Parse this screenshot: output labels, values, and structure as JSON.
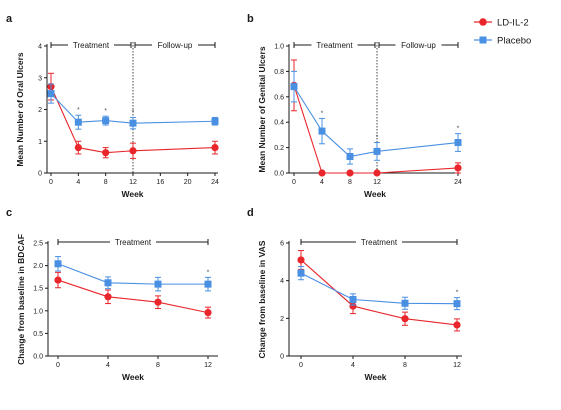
{
  "legend": {
    "items": [
      {
        "label": "LD-IL-2",
        "color": "#e8262b",
        "marker": "circle"
      },
      {
        "label": "Placebo",
        "color": "#4a90e2",
        "marker": "square"
      }
    ]
  },
  "chart_data": [
    {
      "panel": "a",
      "type": "line",
      "ylabel": "Mean Number of Oral Ulcers",
      "xlabel": "Week",
      "x": [
        0,
        4,
        8,
        12,
        24
      ],
      "x_ticks": [
        "0",
        "4",
        "8",
        "12",
        "16",
        "20",
        "24"
      ],
      "y_ticks": [
        "0",
        "1",
        "2",
        "3",
        "4"
      ],
      "ylim": [
        0,
        4
      ],
      "phases": [
        {
          "label": "Treatment",
          "from": 0,
          "to": 12
        },
        {
          "label": "Follow-up",
          "from": 12,
          "to": 24
        }
      ],
      "divider_at": 12,
      "significance": [
        4,
        8,
        12
      ],
      "series": [
        {
          "name": "LD-IL-2",
          "values": [
            2.72,
            0.8,
            0.64,
            0.7,
            0.8
          ],
          "errors": [
            0.42,
            0.2,
            0.16,
            0.24,
            0.2
          ]
        },
        {
          "name": "Placebo",
          "values": [
            2.5,
            1.6,
            1.65,
            1.57,
            1.63
          ],
          "errors": [
            0.3,
            0.22,
            0.14,
            0.18,
            0.12
          ]
        }
      ]
    },
    {
      "panel": "b",
      "type": "line",
      "ylabel": "Mean Number of Genital Ulcers",
      "xlabel": "Week",
      "x": [
        0,
        4,
        8,
        12,
        24
      ],
      "x_ticks": [
        "0",
        "4",
        "8",
        "12",
        "24"
      ],
      "y_ticks": [
        "0.0",
        "0.2",
        "0.4",
        "0.6",
        "0.8",
        "1.0"
      ],
      "ylim": [
        0,
        1
      ],
      "phases": [
        {
          "label": "Treatment",
          "from": 0,
          "to": 12
        },
        {
          "label": "Follow-up",
          "from": 12,
          "to": 24
        }
      ],
      "divider_at": 12,
      "significance": [
        4,
        12,
        24
      ],
      "series": [
        {
          "name": "LD-IL-2",
          "values": [
            0.69,
            0.0,
            0.0,
            0.0,
            0.04
          ],
          "errors": [
            0.2,
            0.0,
            0.0,
            0.0,
            0.04
          ]
        },
        {
          "name": "Placebo",
          "values": [
            0.68,
            0.33,
            0.13,
            0.17,
            0.24
          ],
          "errors": [
            0.12,
            0.1,
            0.06,
            0.07,
            0.07
          ]
        }
      ]
    },
    {
      "panel": "c",
      "type": "line",
      "ylabel": "Change from baseline in BDCAF",
      "xlabel": "Week",
      "x": [
        0,
        4,
        8,
        12
      ],
      "x_ticks": [
        "0",
        "4",
        "8",
        "12"
      ],
      "y_ticks": [
        "0.0",
        "0.5",
        "1.0",
        "1.5",
        "2.0",
        "2.5"
      ],
      "ylim": [
        0,
        2.5
      ],
      "phases": [
        {
          "label": "Treatment",
          "from": 0,
          "to": 12
        }
      ],
      "divider_at": null,
      "significance": [
        12
      ],
      "series": [
        {
          "name": "LD-IL-2",
          "values": [
            1.68,
            1.31,
            1.19,
            0.96
          ],
          "errors": [
            0.17,
            0.15,
            0.14,
            0.12
          ]
        },
        {
          "name": "Placebo",
          "values": [
            2.04,
            1.62,
            1.59,
            1.59
          ],
          "errors": [
            0.16,
            0.13,
            0.15,
            0.15
          ]
        }
      ]
    },
    {
      "panel": "d",
      "type": "line",
      "ylabel": "Change from baseline in VAS",
      "xlabel": "Week",
      "x": [
        0,
        4,
        8,
        12
      ],
      "x_ticks": [
        "0",
        "4",
        "8",
        "12"
      ],
      "y_ticks": [
        "0",
        "2",
        "4",
        "6"
      ],
      "ylim": [
        0,
        6
      ],
      "phases": [
        {
          "label": "Treatment",
          "from": 0,
          "to": 12
        }
      ],
      "divider_at": null,
      "significance": [
        12
      ],
      "series": [
        {
          "name": "LD-IL-2",
          "values": [
            5.1,
            2.65,
            1.98,
            1.65
          ],
          "errors": [
            0.5,
            0.4,
            0.35,
            0.32
          ]
        },
        {
          "name": "Placebo",
          "values": [
            4.4,
            3.0,
            2.8,
            2.78
          ],
          "errors": [
            0.35,
            0.3,
            0.32,
            0.32
          ]
        }
      ]
    }
  ]
}
